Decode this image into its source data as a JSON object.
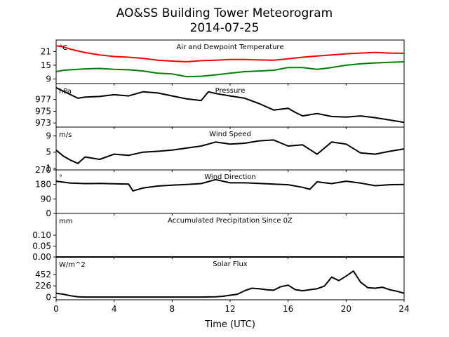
{
  "title": "AO&SS Building Tower Meteorogram",
  "subtitle": "2014-07-25",
  "chart_data": [
    {
      "type": "line",
      "title": "Air and Dewpoint Temperature",
      "unit_label": "°C",
      "xlim": [
        0,
        24
      ],
      "ylim": [
        7,
        26
      ],
      "yticks": [
        "9",
        "15",
        "21"
      ],
      "x": [
        0,
        0.5,
        1,
        2,
        3,
        4,
        5,
        6,
        7,
        8,
        9,
        10,
        11,
        12,
        13,
        14,
        15,
        16,
        17,
        18,
        19,
        20,
        21,
        22,
        23,
        24
      ],
      "series": [
        {
          "color": "#ff0000",
          "values": [
            23.5,
            23,
            22,
            20.5,
            19.5,
            18.8,
            18.5,
            18,
            17.2,
            16.8,
            16.5,
            17,
            17.2,
            17.5,
            17.5,
            17.3,
            17.2,
            17.8,
            18.5,
            19,
            19.5,
            20,
            20.3,
            20.6,
            20.3,
            20.2
          ]
        },
        {
          "color": "#008000",
          "values": [
            12.2,
            12.8,
            13,
            13.4,
            13.6,
            13.2,
            13,
            12.5,
            11.5,
            11.2,
            10,
            10.2,
            10.8,
            11.5,
            12.2,
            12.5,
            12.8,
            14,
            14,
            13.2,
            14,
            15,
            15.6,
            16,
            16.3,
            16.5
          ]
        }
      ]
    },
    {
      "type": "line",
      "title": "Pressure",
      "unit_label": "hPa",
      "xlim": [
        0,
        24
      ],
      "ylim": [
        972.3,
        979.7
      ],
      "yticks": [
        "973",
        "975",
        "977"
      ],
      "x": [
        0,
        0.5,
        1,
        1.5,
        2,
        3,
        4,
        5,
        6,
        7,
        8,
        9,
        10,
        10.5,
        11,
        12,
        13,
        14,
        15,
        16,
        16.5,
        17,
        18,
        19,
        20,
        21,
        22,
        23,
        24
      ],
      "series": [
        {
          "color": "#000000",
          "values": [
            979,
            978.4,
            977.8,
            977.2,
            977.4,
            977.5,
            977.8,
            977.6,
            978.3,
            978.1,
            977.6,
            977.1,
            976.8,
            978.3,
            978,
            977.6,
            977.2,
            976.3,
            975.2,
            975.5,
            974.8,
            974.2,
            974.6,
            974.1,
            974,
            974.2,
            973.9,
            973.5,
            973.1
          ]
        }
      ]
    },
    {
      "type": "line",
      "title": "Wind Speed",
      "unit_label": "m/s",
      "xlim": [
        0,
        24
      ],
      "ylim": [
        0.6,
        11.2
      ],
      "yticks": [
        "1",
        "5",
        "9"
      ],
      "x": [
        0,
        0.5,
        1,
        1.5,
        2,
        3,
        4,
        5,
        6,
        7,
        8,
        9,
        10,
        11,
        12,
        13,
        14,
        15,
        16,
        17,
        18,
        19,
        20,
        21,
        22,
        23,
        24
      ],
      "series": [
        {
          "color": "#000000",
          "values": [
            5.5,
            4,
            3,
            2.2,
            3.8,
            3.2,
            4.5,
            4.2,
            5,
            5.2,
            5.5,
            6,
            6.5,
            7.5,
            7,
            7.2,
            7.8,
            8,
            6.5,
            6.8,
            4.5,
            7.5,
            7,
            4.8,
            4.5,
            5.2,
            5.8
          ]
        }
      ]
    },
    {
      "type": "line",
      "title": "Wind Direction",
      "unit_label": "°",
      "xlim": [
        0,
        24
      ],
      "ylim": [
        0,
        270
      ],
      "yticks": [
        "0",
        "90",
        "180",
        "270"
      ],
      "x": [
        0,
        1,
        2,
        3,
        4,
        5,
        5.3,
        6,
        7,
        8,
        9,
        10,
        11,
        12,
        13,
        14,
        15,
        16,
        17,
        17.5,
        18,
        19,
        20,
        21,
        22,
        23,
        24
      ],
      "series": [
        {
          "color": "#000000",
          "values": [
            200,
            188,
            185,
            186,
            184,
            182,
            140,
            158,
            170,
            175,
            180,
            185,
            210,
            190,
            190,
            186,
            182,
            178,
            162,
            150,
            196,
            185,
            200,
            188,
            172,
            178,
            180
          ]
        }
      ]
    },
    {
      "type": "line",
      "title": "Accumulated Precipitation Since 0Z",
      "unit_label": "mm",
      "xlim": [
        0,
        24
      ],
      "ylim": [
        0,
        0.2
      ],
      "yticks": [
        "0.00",
        "0.05",
        "0.10"
      ],
      "x": [
        0,
        24
      ],
      "series": [
        {
          "color": "#000000",
          "values": [
            0,
            0
          ]
        }
      ]
    },
    {
      "type": "line",
      "title": "Solar Flux",
      "unit_label": "W/m^2",
      "xlim": [
        0,
        24
      ],
      "ylim": [
        -50,
        800
      ],
      "yticks": [
        "0",
        "226",
        "452"
      ],
      "x": [
        0,
        0.5,
        1,
        1.5,
        2,
        3,
        4,
        5,
        6,
        7,
        8,
        9,
        10,
        11,
        11.5,
        12,
        12.5,
        13,
        13.5,
        14,
        14.5,
        15,
        15.5,
        16,
        16.5,
        17,
        17.5,
        18,
        18.5,
        19,
        19.5,
        20,
        20.5,
        21,
        21.5,
        22,
        22.5,
        23,
        23.5,
        24
      ],
      "series": [
        {
          "color": "#000000",
          "values": [
            80,
            60,
            30,
            10,
            5,
            5,
            5,
            5,
            5,
            5,
            5,
            5,
            5,
            10,
            20,
            40,
            60,
            130,
            180,
            170,
            150,
            140,
            210,
            240,
            150,
            130,
            150,
            170,
            220,
            400,
            330,
            420,
            520,
            300,
            190,
            180,
            200,
            150,
            120,
            80
          ]
        }
      ]
    }
  ],
  "xaxis": {
    "label": "Time (UTC)",
    "ticks": [
      "0",
      "4",
      "8",
      "12",
      "16",
      "20",
      "24"
    ],
    "tick_values": [
      0,
      4,
      8,
      12,
      16,
      20,
      24
    ]
  }
}
